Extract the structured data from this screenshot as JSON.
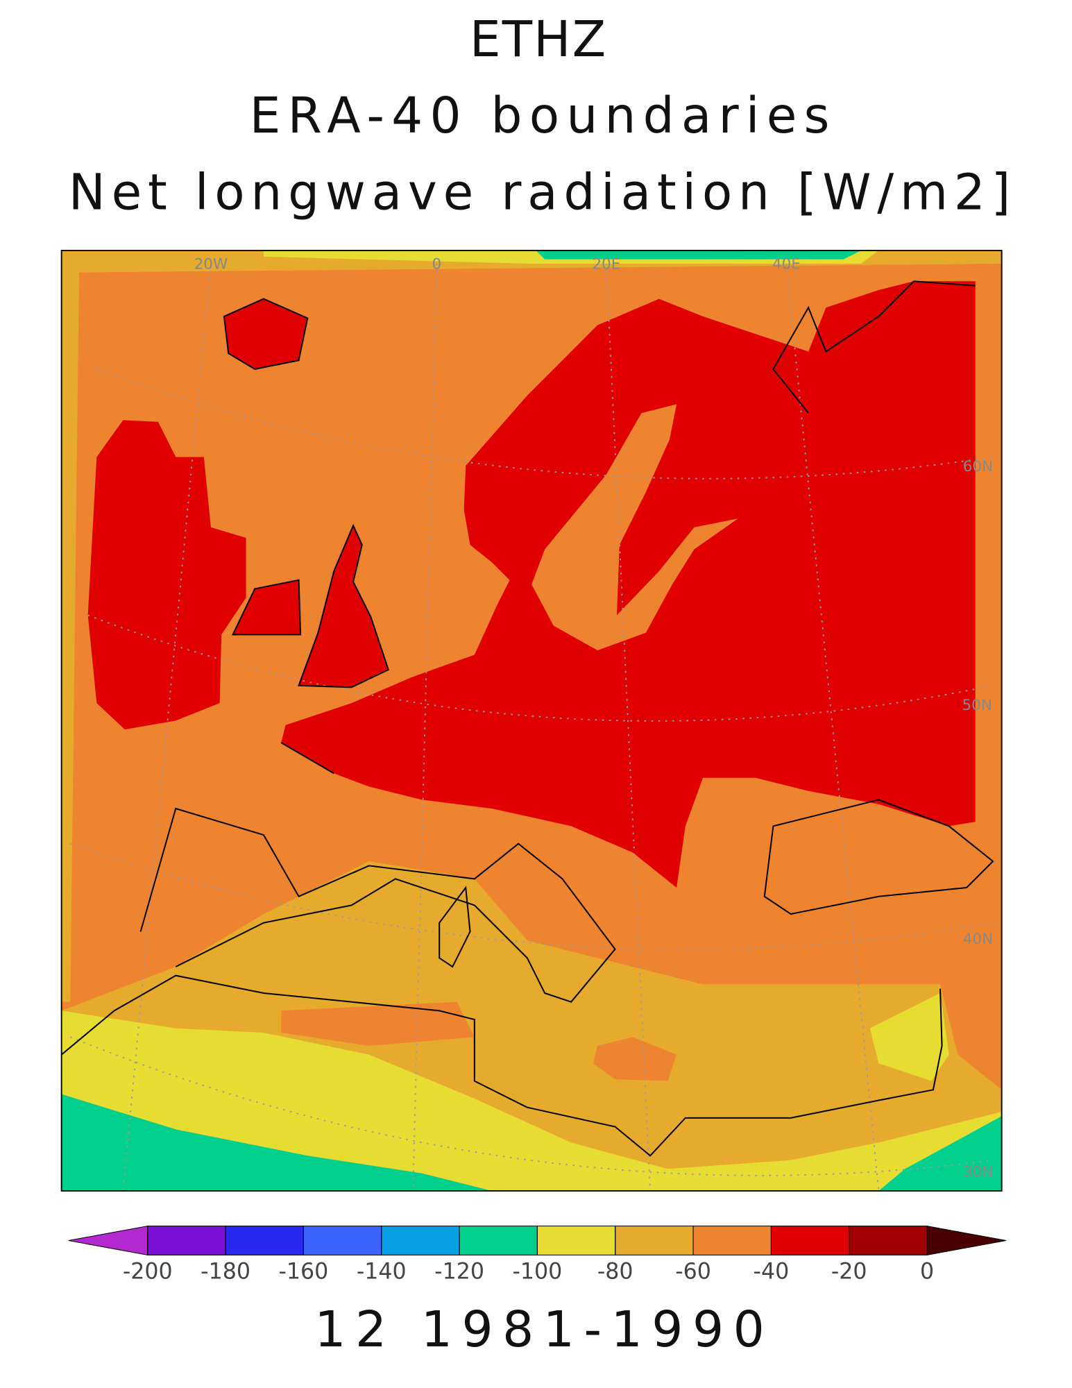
{
  "header": {
    "title_lines": [
      "ETHZ",
      "ERA-40 boundaries",
      "Net longwave radiation [W/m2]"
    ]
  },
  "map": {
    "graticule_labels": [
      "20W",
      "0",
      "20E",
      "40E",
      "60N",
      "50N",
      "40N",
      "30N"
    ]
  },
  "colorbar": {
    "ticks": [
      -200,
      -180,
      -160,
      -140,
      -120,
      -100,
      -80,
      -60,
      -40,
      -20,
      0
    ],
    "colors": [
      "#7a10d6",
      "#2828f0",
      "#3c64ff",
      "#0aa0e6",
      "#00d08c",
      "#e6dc32",
      "#e6aa2d",
      "#ef8430",
      "#e00000",
      "#a00000"
    ],
    "under_color": "#b428d2",
    "over_color": "#4a0000"
  },
  "footer": {
    "label": "12 1981-1990"
  }
}
